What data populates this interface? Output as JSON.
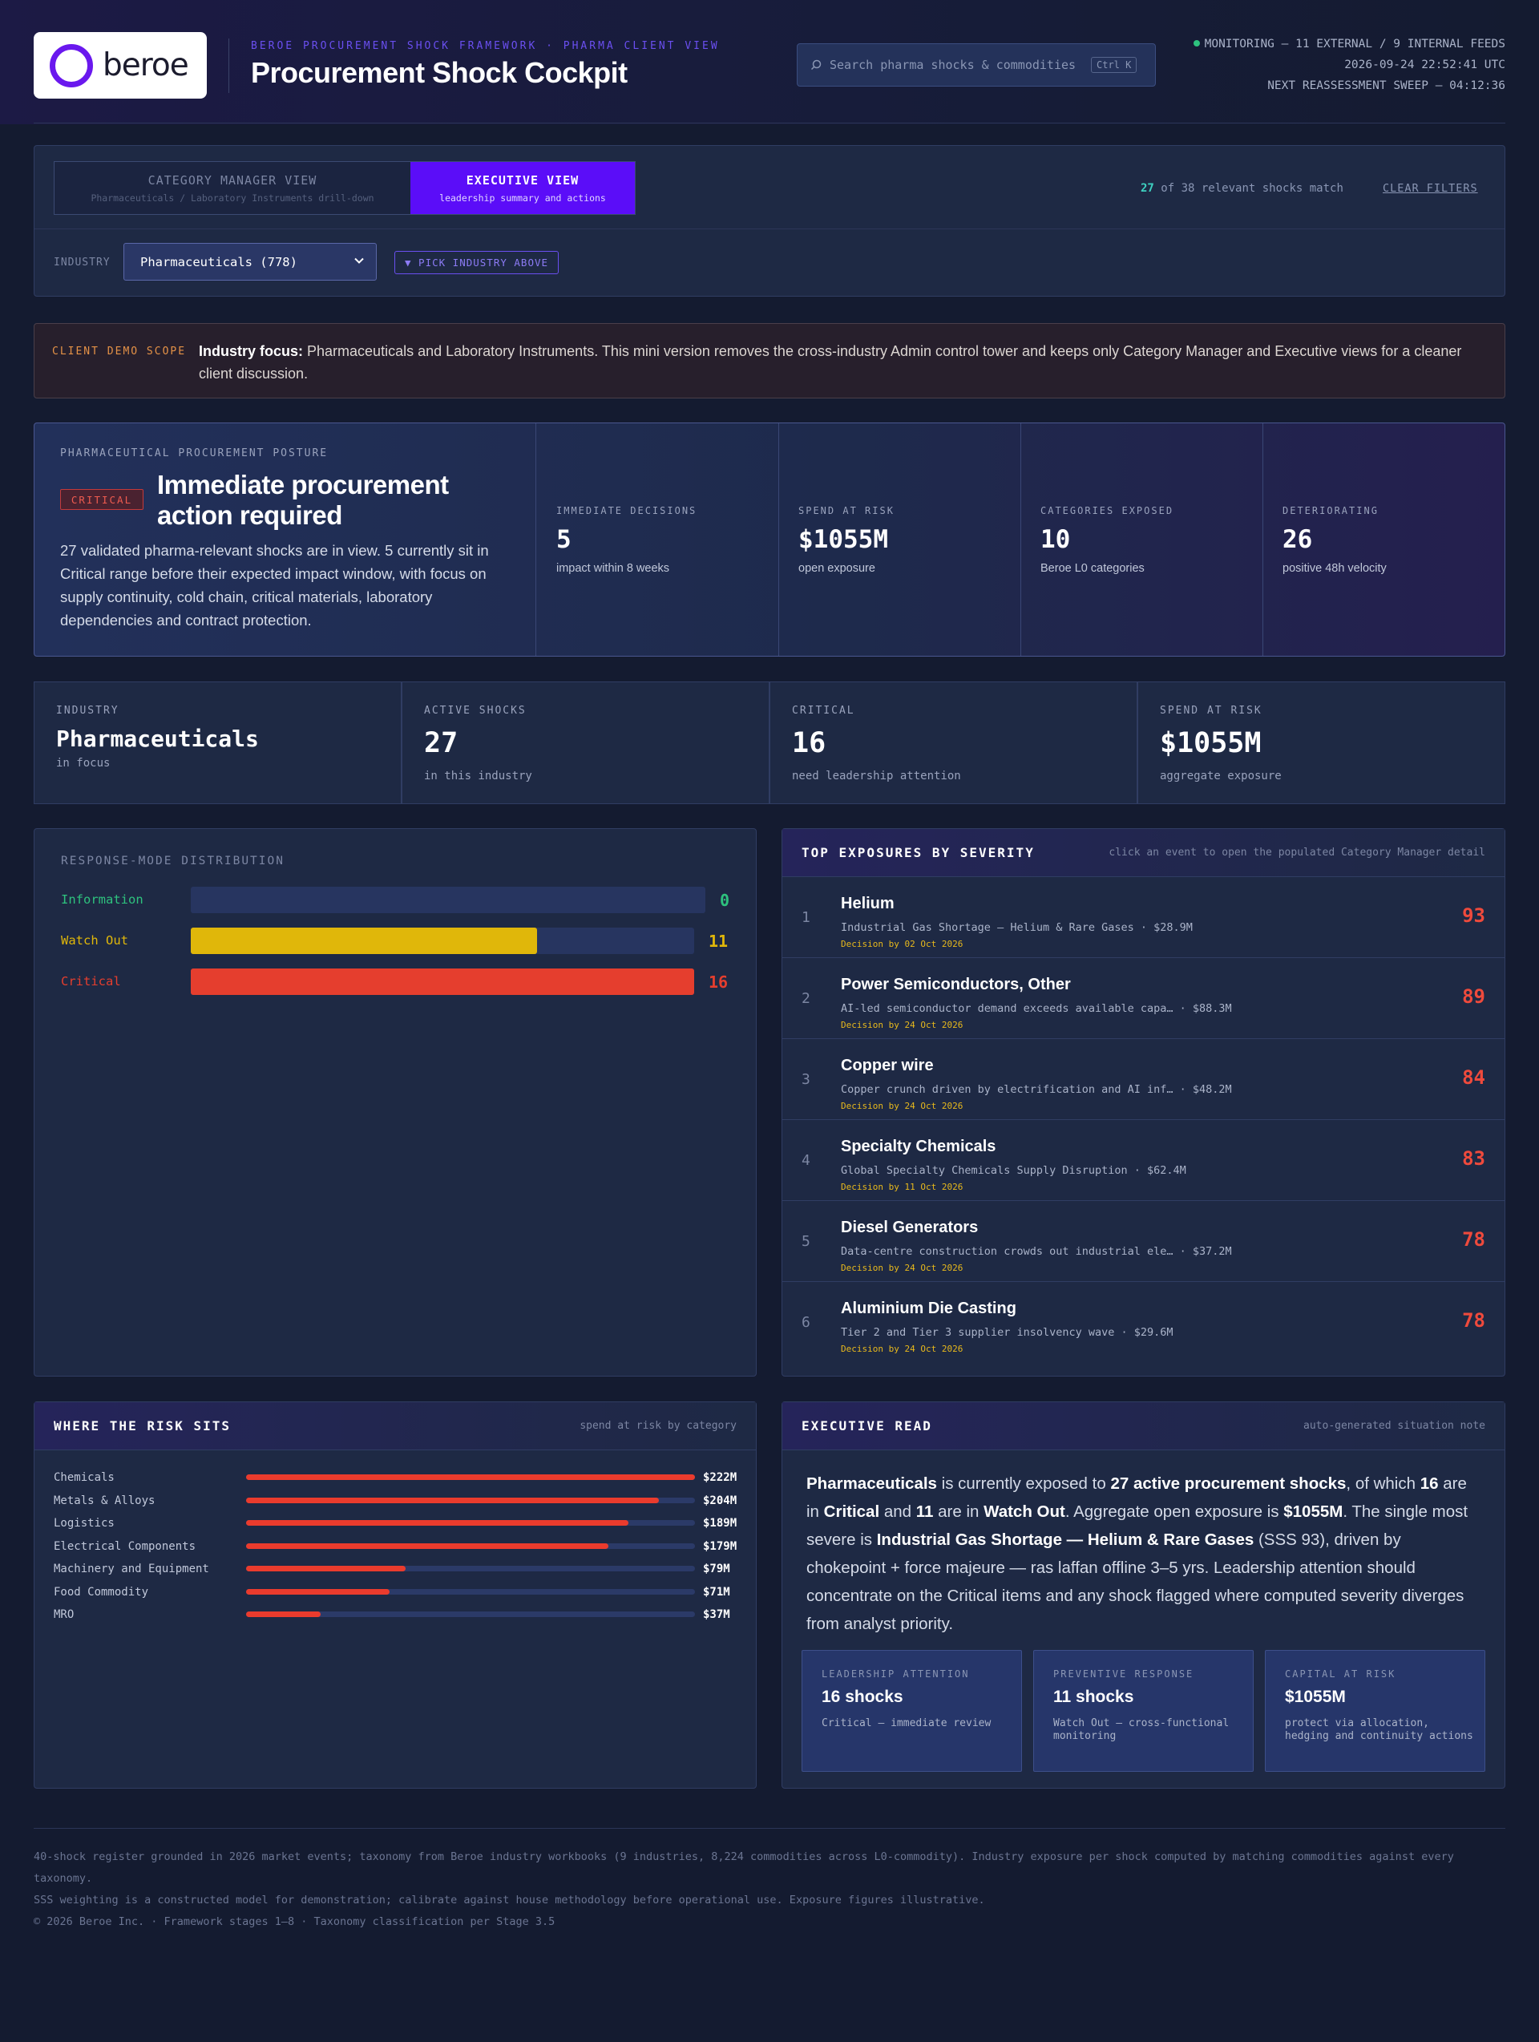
{
  "header": {
    "logo_text": "beroe",
    "eyebrow": "BEROE PROCUREMENT SHOCK FRAMEWORK · PHARMA CLIENT VIEW",
    "title": "Procurement Shock Cockpit",
    "search_placeholder": "Search pharma shocks & commodities",
    "search_shortcut": "Ctrl K",
    "monitoring": "MONITORING — 11 EXTERNAL / 9 INTERNAL FEEDS",
    "timestamp": "2026-09-24 22:52:41 UTC",
    "next_sweep": "NEXT REASSESSMENT SWEEP — 04:12:36"
  },
  "filters": {
    "tabs": [
      {
        "title": "CATEGORY MANAGER VIEW",
        "subtitle": "Pharmaceuticals / Laboratory Instruments drill-down"
      },
      {
        "title": "EXECUTIVE VIEW",
        "subtitle": "leadership summary and actions"
      }
    ],
    "match_count": "27",
    "match_text": "of 38 relevant shocks match",
    "clear_label": "CLEAR FILTERS",
    "industry_label": "INDUSTRY",
    "industry_value": "Pharmaceuticals (778)",
    "pick_label": "▼ PICK INDUSTRY ABOVE"
  },
  "demo": {
    "label": "CLIENT DEMO SCOPE",
    "bold": "Industry focus:",
    "text": " Pharmaceuticals and Laboratory Instruments. This mini version removes the cross-industry Admin control tower and keeps only Category Manager and Executive views for a cleaner client discussion."
  },
  "posture": {
    "eyebrow": "PHARMACEUTICAL PROCUREMENT POSTURE",
    "badge": "CRITICAL",
    "headline": "Immediate procurement action required",
    "body": "27 validated pharma-relevant shocks are in view. 5 currently sit in Critical range before their expected impact window, with focus on supply continuity, cold chain, critical materials, laboratory dependencies and contract protection.",
    "kpis": [
      {
        "label": "IMMEDIATE DECISIONS",
        "value": "5",
        "sub": "impact within 8 weeks"
      },
      {
        "label": "SPEND AT RISK",
        "value": "$1055M",
        "sub": "open exposure"
      },
      {
        "label": "CATEGORIES EXPOSED",
        "value": "10",
        "sub": "Beroe L0 categories"
      },
      {
        "label": "DETERIORATING",
        "value": "26",
        "sub": "positive 48h velocity"
      }
    ]
  },
  "stats": [
    {
      "label": "INDUSTRY",
      "value": "Pharmaceuticals",
      "sub": "in focus"
    },
    {
      "label": "ACTIVE SHOCKS",
      "value": "27",
      "sub": "in this industry"
    },
    {
      "label": "CRITICAL",
      "value": "16",
      "sub": "need leadership attention"
    },
    {
      "label": "SPEND AT RISK",
      "value": "$1055M",
      "sub": "aggregate exposure"
    }
  ],
  "distribution": {
    "title": "RESPONSE-MODE DISTRIBUTION",
    "max": 16,
    "rows": [
      {
        "name": "Information",
        "value": 0,
        "color": "#2ec27e"
      },
      {
        "name": "Watch Out",
        "value": 11,
        "color": "#e0b70a"
      },
      {
        "name": "Critical",
        "value": 16,
        "color": "#e53e2e"
      }
    ]
  },
  "exposures": {
    "title": "TOP EXPOSURES BY SEVERITY",
    "hint": "click an event to open the populated Category Manager detail",
    "items": [
      {
        "rank": "1",
        "name": "Helium",
        "desc": "Industrial Gas Shortage — Helium & Rare Gases · $28.9M",
        "decision": "Decision by 02 Oct 2026",
        "score": "93"
      },
      {
        "rank": "2",
        "name": "Power Semiconductors, Other",
        "desc": "AI-led semiconductor demand exceeds available capa… · $88.3M",
        "decision": "Decision by 24 Oct 2026",
        "score": "89"
      },
      {
        "rank": "3",
        "name": "Copper wire",
        "desc": "Copper crunch driven by electrification and AI inf… · $48.2M",
        "decision": "Decision by 24 Oct 2026",
        "score": "84"
      },
      {
        "rank": "4",
        "name": "Specialty Chemicals",
        "desc": "Global Specialty Chemicals Supply Disruption · $62.4M",
        "decision": "Decision by 11 Oct 2026",
        "score": "83"
      },
      {
        "rank": "5",
        "name": "Diesel Generators",
        "desc": "Data-centre construction crowds out industrial ele… · $37.2M",
        "decision": "Decision by 24 Oct 2026",
        "score": "78"
      },
      {
        "rank": "6",
        "name": "Aluminium Die Casting",
        "desc": "Tier 2 and Tier 3 supplier insolvency wave · $29.6M",
        "decision": "Decision by 24 Oct 2026",
        "score": "78"
      }
    ]
  },
  "risk": {
    "title": "WHERE THE RISK SITS",
    "hint": "spend at risk by category",
    "max": 222,
    "rows": [
      {
        "name": "Chemicals",
        "value": 222,
        "label": "$222M"
      },
      {
        "name": "Metals & Alloys",
        "value": 204,
        "label": "$204M"
      },
      {
        "name": "Logistics",
        "value": 189,
        "label": "$189M"
      },
      {
        "name": "Electrical Components",
        "value": 179,
        "label": "$179M"
      },
      {
        "name": "Machinery and Equipment",
        "value": 79,
        "label": "$79M"
      },
      {
        "name": "Food Commodity",
        "value": 71,
        "label": "$71M"
      },
      {
        "name": "MRO",
        "value": 37,
        "label": "$37M"
      }
    ]
  },
  "exec_read": {
    "title": "EXECUTIVE READ",
    "hint": "auto-generated situation note",
    "segments": [
      {
        "b": true,
        "t": "Pharmaceuticals"
      },
      {
        "b": false,
        "t": " is currently exposed to "
      },
      {
        "b": true,
        "t": "27 active procurement shocks"
      },
      {
        "b": false,
        "t": ", of which "
      },
      {
        "b": true,
        "t": "16"
      },
      {
        "b": false,
        "t": " are in "
      },
      {
        "b": true,
        "t": "Critical"
      },
      {
        "b": false,
        "t": " and "
      },
      {
        "b": true,
        "t": "11"
      },
      {
        "b": false,
        "t": " are in "
      },
      {
        "b": true,
        "t": "Watch Out"
      },
      {
        "b": false,
        "t": ". Aggregate open exposure is "
      },
      {
        "b": true,
        "t": "$1055M"
      },
      {
        "b": false,
        "t": ". The single most severe is "
      },
      {
        "b": true,
        "t": "Industrial Gas Shortage — Helium & Rare Gases"
      },
      {
        "b": false,
        "t": " (SSS 93), driven by chokepoint + force majeure — ras laffan offline 3–5 yrs. Leadership attention should concentrate on the Critical items and any shock flagged where computed severity diverges from analyst priority."
      }
    ],
    "cards": [
      {
        "label": "LEADERSHIP ATTENTION",
        "value": "16 shocks",
        "sub": "Critical — immediate review"
      },
      {
        "label": "PREVENTIVE RESPONSE",
        "value": "11 shocks",
        "sub": "Watch Out — cross-functional monitoring"
      },
      {
        "label": "CAPITAL AT RISK",
        "value": "$1055M",
        "sub": "protect via allocation, hedging and continuity actions"
      }
    ]
  },
  "footer": {
    "line1": "40-shock register grounded in 2026 market events; taxonomy from Beroe industry workbooks (9 industries, 8,224 commodities across L0-commodity). Industry exposure per shock computed by matching commodities against every taxonomy.",
    "line2": "SSS weighting is a constructed model for demonstration; calibrate against house methodology before operational use. Exposure figures illustrative.",
    "line3": "© 2026 Beroe Inc. · Framework stages 1–8 · Taxonomy classification per Stage 3.5"
  }
}
